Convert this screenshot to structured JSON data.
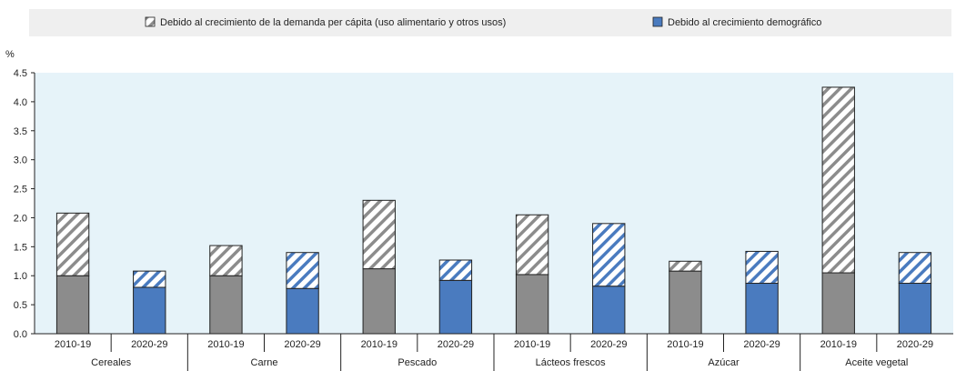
{
  "chart_data": {
    "type": "bar",
    "stacked": true,
    "ylabel": "%",
    "ylim": [
      0,
      4.5
    ],
    "yticks": [
      "0.0",
      "0.5",
      "1.0",
      "1.5",
      "2.0",
      "2.5",
      "3.0",
      "3.5",
      "4.0",
      "4.5"
    ],
    "groups": [
      "Cereales",
      "Carne",
      "Pescado",
      "Lácteos frescos",
      "Azúcar",
      "Aceite vegetal"
    ],
    "periods": [
      "2010-19",
      "2020-29"
    ],
    "categories": [
      "Cereales 2010-19",
      "Cereales 2020-29",
      "Carne 2010-19",
      "Carne 2020-29",
      "Pescado 2010-19",
      "Pescado 2020-29",
      "Lácteos frescos 2010-19",
      "Lácteos frescos 2020-29",
      "Azúcar 2010-19",
      "Azúcar 2020-29",
      "Aceite vegetal 2010-19",
      "Aceite vegetal 2020-29"
    ],
    "series": [
      {
        "name": "Debido al crecimiento demográfico",
        "values": [
          1.0,
          0.8,
          1.0,
          0.78,
          1.12,
          0.92,
          1.02,
          0.82,
          1.08,
          0.87,
          1.05,
          0.87
        ]
      },
      {
        "name": "Debido al crecimiento de la demanda per cápita (uso alimentario y otros usos)",
        "values": [
          1.08,
          0.28,
          0.52,
          0.62,
          1.18,
          0.35,
          1.03,
          1.08,
          0.17,
          0.55,
          3.2,
          0.53
        ]
      }
    ],
    "legend": {
      "placement": "top",
      "labels": [
        "Debido al crecimiento de la demanda per cápita (uso alimentario y otros usos)",
        "Debido al crecimiento demográfico"
      ]
    },
    "colors": {
      "demographic_2010": "#8c8c8c",
      "demographic_2020": "#4a7bbf",
      "percapita_stroke_2010": "#8c8c8c",
      "percapita_stroke_2020": "#4a7bbf",
      "plot_background": "#e6f3f9",
      "legend_background": "#efefef",
      "bar_outline": "#222222"
    },
    "grid": false
  }
}
